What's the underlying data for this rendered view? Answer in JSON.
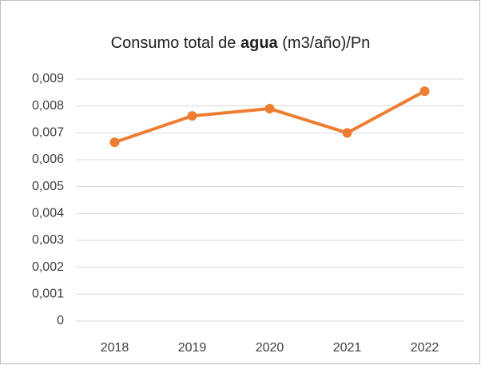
{
  "chart_data": {
    "type": "line",
    "title": [
      "Consumo total de",
      "agua",
      "(m3/año)/Pn"
    ],
    "categories": [
      "2018",
      "2019",
      "2020",
      "2021",
      "2022"
    ],
    "values": [
      0.00665,
      0.00763,
      0.0079,
      0.007,
      0.00855
    ],
    "color": "#ed7d31",
    "ylim": [
      0,
      0.009
    ],
    "yticks": [
      0,
      {
        "value": 0.001,
        "label": "0,001"
      },
      {
        "value": 0.002,
        "label": "0,002"
      },
      {
        "value": 0.003,
        "label": "0,003"
      },
      {
        "value": 0.004,
        "label": "0,004"
      },
      {
        "value": 0.005,
        "label": "0,005"
      },
      {
        "value": 0.006,
        "label": "0,006"
      },
      {
        "value": 0.007,
        "label": "0,007"
      },
      {
        "value": 0.008,
        "label": "0,008"
      },
      {
        "value": 0.009,
        "label": "0,009"
      }
    ],
    "grid": true
  }
}
